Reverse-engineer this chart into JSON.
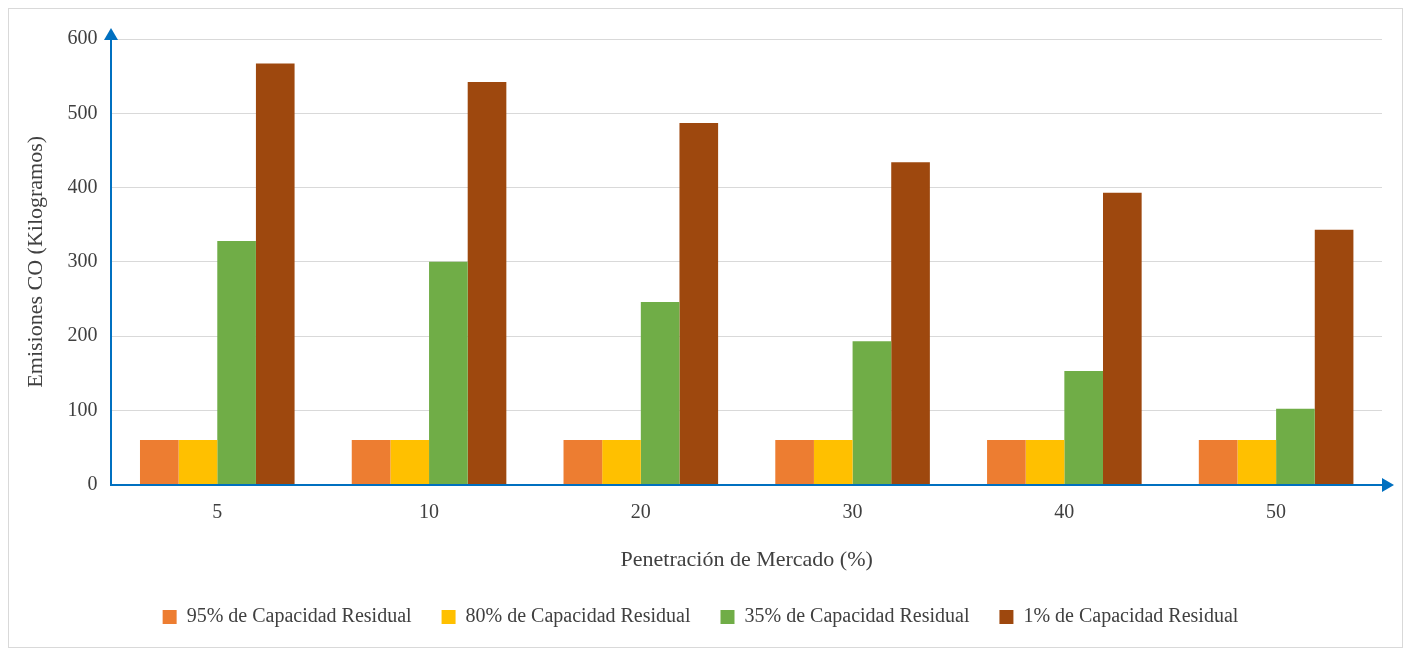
{
  "chart_data": {
    "type": "bar",
    "xlabel": "Penetración de Mercado (%)",
    "ylabel": "Emisiones CO (Kilogramos)",
    "categories": [
      "5",
      "10",
      "20",
      "30",
      "40",
      "50"
    ],
    "series": [
      {
        "name": "95% de Capacidad Residual",
        "color": "#ed7d31",
        "values": [
          60,
          60,
          60,
          60,
          60,
          60
        ]
      },
      {
        "name": "80% de Capacidad Residual",
        "color": "#ffc000",
        "values": [
          60,
          60,
          60,
          60,
          60,
          60
        ]
      },
      {
        "name": "35% de Capacidad Residual",
        "color": "#70ad47",
        "values": [
          328,
          300,
          246,
          193,
          153,
          102
        ]
      },
      {
        "name": "1% de Capacidad Residual",
        "color": "#9e480e",
        "values": [
          567,
          542,
          487,
          434,
          393,
          343
        ]
      }
    ],
    "ylim": [
      0,
      600
    ],
    "yticks": [
      0,
      100,
      200,
      300,
      400,
      500,
      600
    ],
    "grid": "y",
    "legend": "bottom"
  }
}
